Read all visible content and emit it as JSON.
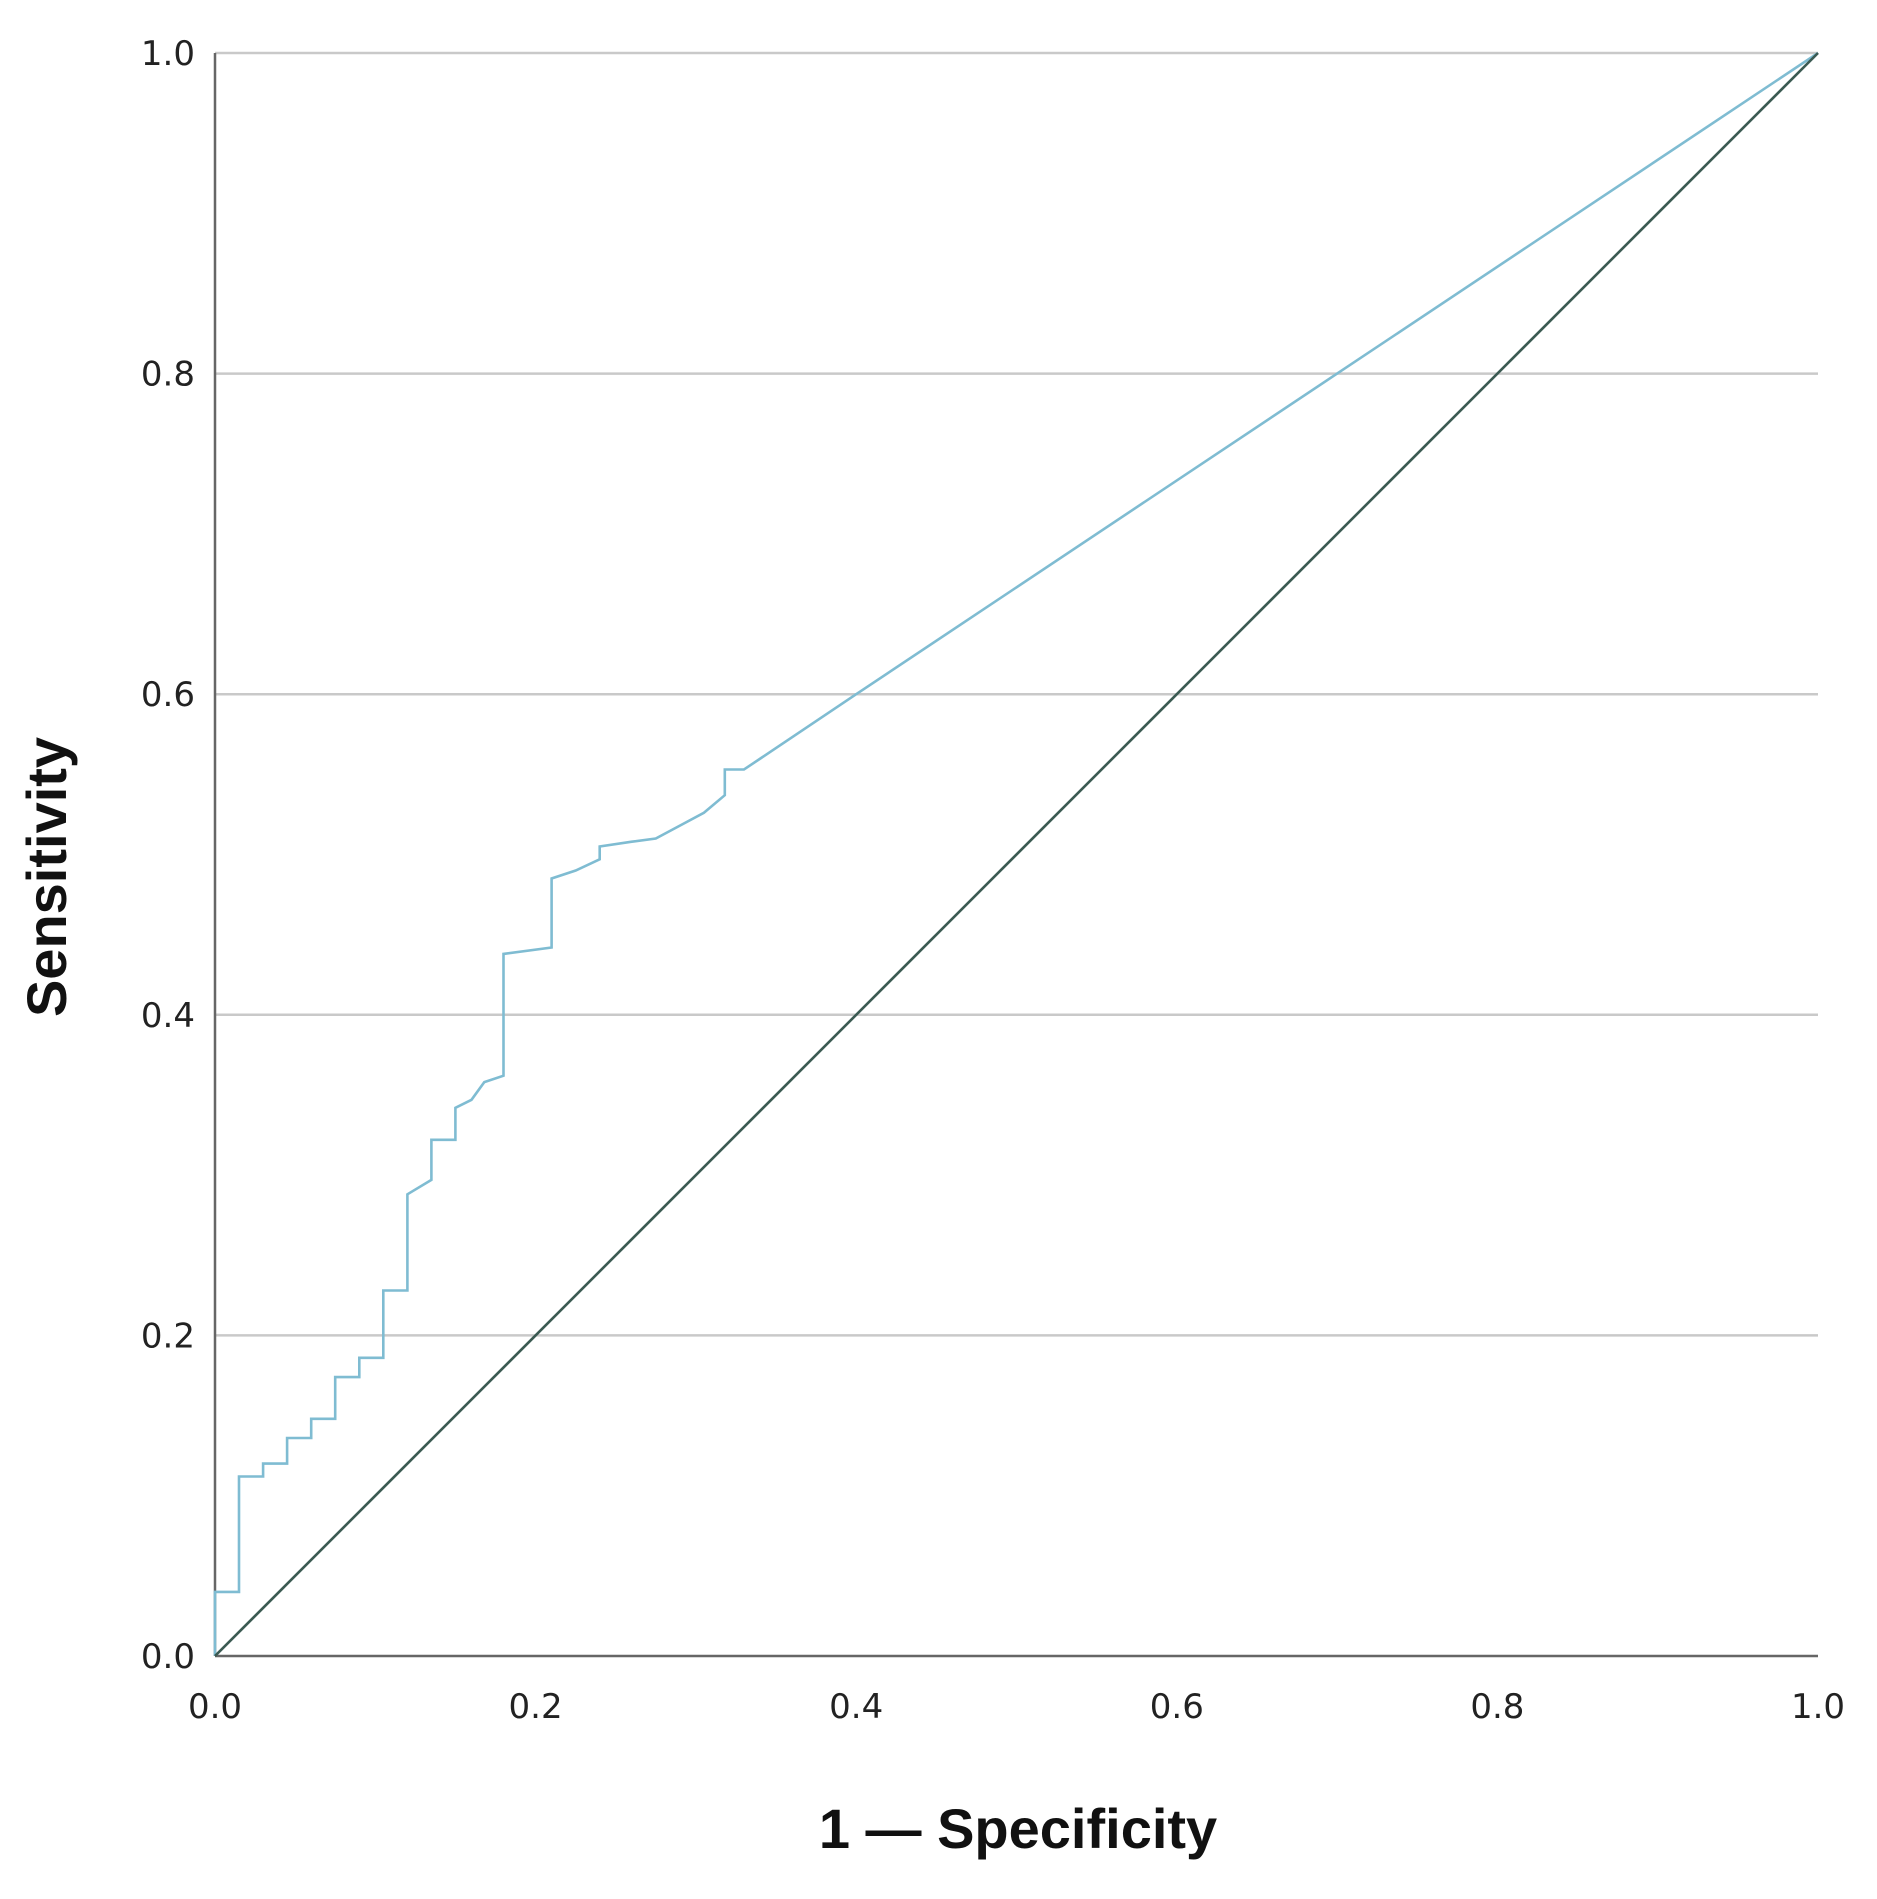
{
  "chart_data": {
    "type": "line",
    "title": "",
    "xlabel": "1 — Specificity",
    "ylabel": "Sensitivity",
    "xlim": [
      0,
      1
    ],
    "ylim": [
      0,
      1
    ],
    "x_ticks": [
      "0.0",
      "0.2",
      "0.4",
      "0.6",
      "0.8",
      "1.0"
    ],
    "y_ticks": [
      "0.0",
      "0.2",
      "0.4",
      "0.6",
      "0.8",
      "1.0"
    ],
    "grid": "horizontal",
    "legend": "none",
    "series": [
      {
        "color": "#7fbcd2",
        "points": [
          [
            0.0,
            0.0
          ],
          [
            0.0,
            0.04
          ],
          [
            0.015,
            0.04
          ],
          [
            0.015,
            0.112
          ],
          [
            0.03,
            0.112
          ],
          [
            0.03,
            0.12
          ],
          [
            0.045,
            0.12
          ],
          [
            0.045,
            0.136
          ],
          [
            0.06,
            0.136
          ],
          [
            0.06,
            0.148
          ],
          [
            0.075,
            0.148
          ],
          [
            0.075,
            0.174
          ],
          [
            0.09,
            0.174
          ],
          [
            0.09,
            0.186
          ],
          [
            0.105,
            0.186
          ],
          [
            0.105,
            0.228
          ],
          [
            0.12,
            0.228
          ],
          [
            0.12,
            0.288
          ],
          [
            0.135,
            0.297
          ],
          [
            0.135,
            0.322
          ],
          [
            0.15,
            0.322
          ],
          [
            0.15,
            0.342
          ],
          [
            0.16,
            0.347
          ],
          [
            0.168,
            0.358
          ],
          [
            0.18,
            0.362
          ],
          [
            0.18,
            0.438
          ],
          [
            0.21,
            0.442
          ],
          [
            0.21,
            0.485
          ],
          [
            0.225,
            0.49
          ],
          [
            0.24,
            0.497
          ],
          [
            0.24,
            0.505
          ],
          [
            0.26,
            0.508
          ],
          [
            0.275,
            0.51
          ],
          [
            0.29,
            0.518
          ],
          [
            0.305,
            0.526
          ],
          [
            0.318,
            0.537
          ],
          [
            0.318,
            0.553
          ],
          [
            0.33,
            0.553
          ],
          [
            0.4,
            0.6
          ],
          [
            0.7,
            0.8
          ],
          [
            1.0,
            1.0
          ]
        ]
      },
      {
        "color": "#3b5a52",
        "points": [
          [
            0.0,
            0.0
          ],
          [
            1.0,
            1.0
          ]
        ]
      }
    ]
  }
}
